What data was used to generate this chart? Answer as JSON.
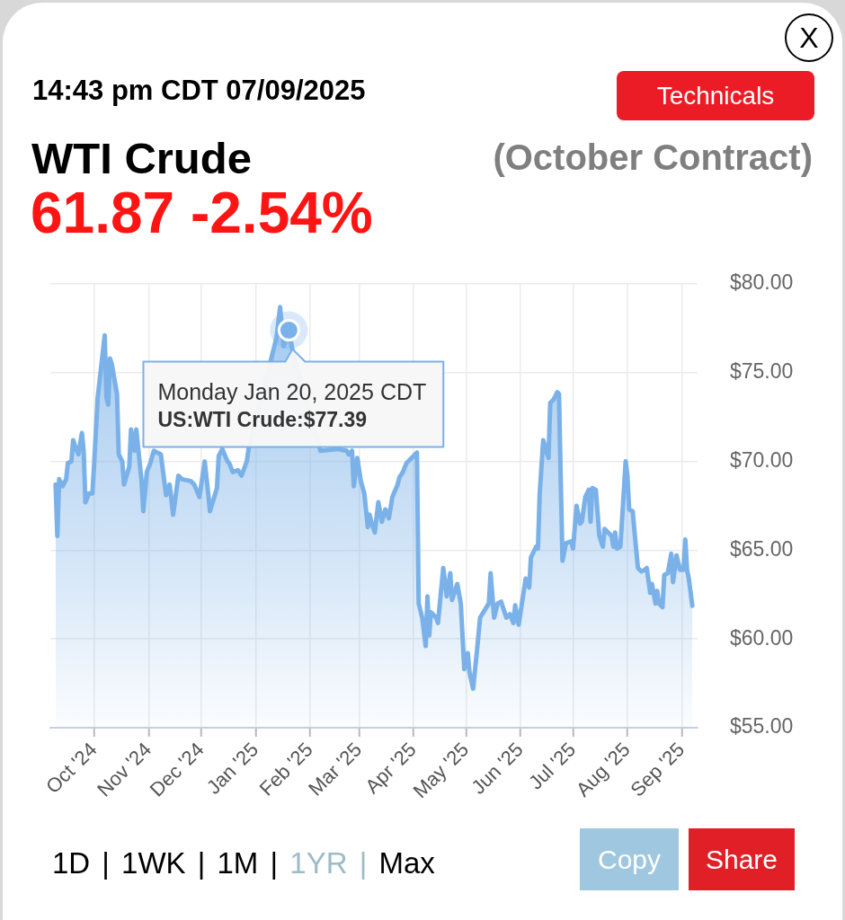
{
  "chart_data": {
    "type": "area",
    "title": "WTI Crude",
    "subtitle": "(October Contract)",
    "annotations": [
      "14:43 pm CDT 07/09/2025",
      "61.87 -2.54%",
      "X",
      "Technicals",
      "1D | 1WK | 1M | 1YR | Max",
      "Copy",
      "Share",
      {
        "text": "Monday Jan 20, 2025 CDT\nUS:WTI Crude:$77.39",
        "x": "2025-01-20",
        "y": 77.39
      }
    ],
    "x": [
      "2024-09-09",
      "2024-09-10",
      "2024-09-11",
      "2024-09-13",
      "2024-09-15",
      "2024-09-16",
      "2024-09-18",
      "2024-09-19",
      "2024-09-20",
      "2024-09-22",
      "2024-09-24",
      "2024-09-25",
      "2024-09-26",
      "2024-09-28",
      "2024-09-30",
      "2024-10-01",
      "2024-10-03",
      "2024-10-07",
      "2024-10-08",
      "2024-10-09",
      "2024-10-10",
      "2024-10-11",
      "2024-10-14",
      "2024-10-15",
      "2024-10-17",
      "2024-10-18",
      "2024-10-21",
      "2024-10-22",
      "2024-10-24",
      "2024-10-25",
      "2024-10-28",
      "2024-10-29",
      "2024-10-31",
      "2024-11-02",
      "2024-11-04",
      "2024-11-06",
      "2024-11-08",
      "2024-11-11",
      "2024-11-13",
      "2024-11-15",
      "2024-11-18",
      "2024-11-20",
      "2024-11-22",
      "2024-11-25",
      "2024-11-27",
      "2024-11-30",
      "2024-12-03",
      "2024-12-05",
      "2024-12-06",
      "2024-12-10",
      "2024-12-11",
      "2024-12-13",
      "2024-12-16",
      "2024-12-17",
      "2024-12-19",
      "2024-12-22",
      "2024-12-24",
      "2024-12-27",
      "2024-12-28",
      "2024-12-30",
      "2025-01-02",
      "2025-01-04",
      "2025-01-07",
      "2025-01-10",
      "2025-01-13",
      "2025-01-15",
      "2025-01-17",
      "2025-01-20",
      "2025-01-22",
      "2025-01-23",
      "2025-01-26",
      "2025-01-29",
      "2025-01-31",
      "2025-02-03",
      "2025-02-05",
      "2025-02-07",
      "2025-02-10",
      "2025-02-12",
      "2025-02-15",
      "2025-02-17",
      "2025-02-20",
      "2025-02-22",
      "2025-02-23",
      "2025-02-25",
      "2025-02-26",
      "2025-02-28",
      "2025-03-02",
      "2025-03-04",
      "2025-03-06",
      "2025-03-07",
      "2025-03-08",
      "2025-03-10",
      "2025-03-12",
      "2025-03-14",
      "2025-03-16",
      "2025-03-18",
      "2025-03-20",
      "2025-03-23",
      "2025-03-24",
      "2025-03-26",
      "2025-03-28",
      "2025-03-29",
      "2025-03-31",
      "2025-04-02",
      "2025-04-03",
      "2025-04-04",
      "2025-04-06",
      "2025-04-08",
      "2025-04-09",
      "2025-04-10",
      "2025-04-11",
      "2025-04-14",
      "2025-04-15",
      "2025-04-18",
      "2025-04-20",
      "2025-04-22",
      "2025-04-23",
      "2025-04-26",
      "2025-04-28",
      "2025-04-30",
      "2025-05-02",
      "2025-05-03",
      "2025-05-05",
      "2025-05-07",
      "2025-05-09",
      "2025-05-14",
      "2025-05-15",
      "2025-05-17",
      "2025-05-19",
      "2025-05-21",
      "2025-05-24",
      "2025-05-26",
      "2025-05-28",
      "2025-05-29",
      "2025-05-31",
      "2025-06-04",
      "2025-06-06",
      "2025-06-07",
      "2025-06-10",
      "2025-06-11",
      "2025-06-12",
      "2025-06-14",
      "2025-06-17",
      "2025-06-18",
      "2025-06-20",
      "2025-06-22",
      "2025-06-23",
      "2025-06-24",
      "2025-06-25",
      "2025-06-27",
      "2025-06-30",
      "2025-07-01",
      "2025-07-03",
      "2025-07-05",
      "2025-07-06",
      "2025-07-08",
      "2025-07-10",
      "2025-07-11",
      "2025-07-12",
      "2025-07-14",
      "2025-07-16",
      "2025-07-18",
      "2025-07-19",
      "2025-07-21",
      "2025-07-23",
      "2025-07-24",
      "2025-07-25",
      "2025-07-26",
      "2025-07-28",
      "2025-07-29",
      "2025-07-31",
      "2025-08-01",
      "2025-08-02",
      "2025-08-04",
      "2025-08-05",
      "2025-08-07",
      "2025-08-09",
      "2025-08-11",
      "2025-08-12",
      "2025-08-14",
      "2025-08-15",
      "2025-08-17",
      "2025-08-18",
      "2025-08-19",
      "2025-08-21",
      "2025-08-22",
      "2025-08-24",
      "2025-08-26",
      "2025-08-27",
      "2025-08-29",
      "2025-08-31",
      "2025-09-02",
      "2025-09-03",
      "2025-09-04",
      "2025-09-05",
      "2025-09-07"
    ],
    "values": [
      68.7,
      65.8,
      69.0,
      68.6,
      69.0,
      69.9,
      70.0,
      71.2,
      70.9,
      70.4,
      71.6,
      70.6,
      67.7,
      68.2,
      68.2,
      69.9,
      73.6,
      77.1,
      73.6,
      73.2,
      75.8,
      75.5,
      73.8,
      70.4,
      70.0,
      68.7,
      69.7,
      71.8,
      70.6,
      71.8,
      68.9,
      67.2,
      69.4,
      69.9,
      70.6,
      null,
      70.4,
      68.1,
      68.7,
      67.0,
      69.2,
      69.0,
      null,
      68.9,
      68.7,
      68.0,
      70.0,
      68.2,
      67.2,
      68.5,
      70.3,
      70.7,
      70.0,
      69.9,
      69.4,
      69.5,
      69.2,
      70.0,
      70.7,
      null,
      null,
      null,
      null,
      null,
      77.0,
      78.7,
      76.5,
      77.39,
      76.3,
      null,
      null,
      null,
      null,
      null,
      null,
      70.6,
      null,
      null,
      null,
      70.7,
      null,
      70.6,
      70.4,
      70.6,
      68.6,
      70.2,
      68.9,
      68.2,
      66.3,
      67.0,
      66.6,
      66.0,
      67.7,
      66.6,
      67.3,
      66.8,
      68.0,
      68.7,
      69.1,
      69.4,
      69.9,
      70.0,
      null,
      null,
      70.5,
      62.0,
      61.2,
      59.6,
      62.4,
      60.2,
      61.5,
      61.2,
      60.9,
      64.0,
      62.4,
      63.7,
      62.2,
      63.1,
      62.0,
      58.3,
      59.2,
      58.1,
      57.2,
      59.1,
      61.2,
      62.0,
      63.7,
      61.2,
      62.0,
      62.1,
      61.2,
      61.4,
      60.9,
      61.9,
      60.8,
      63.4,
      62.9,
      64.6,
      65.2,
      65.1,
      68.2,
      71.2,
      70.2,
      73.3,
      73.5,
      73.9,
      73.8,
      68.9,
      64.4,
      65.4,
      65.5,
      65.1,
      67.5,
      66.5,
      66.6,
      68.0,
      68.4,
      66.6,
      68.5,
      68.4,
      65.8,
      65.2,
      66.2,
      66.0,
      65.8,
      65.2,
      66.0,
      65.1,
      65.2,
      66.8,
      70.0,
      69.2,
      67.3,
      67.2,
      66.1,
      64.0,
      63.8,
      63.9,
      64.0,
      62.6,
      63.1,
      62.0,
      62.7,
      62.0,
      61.8,
      63.6,
      63.7,
      64.8,
      63.2,
      64.7,
      63.9,
      63.9,
      65.6,
      63.9,
      63.4,
      61.87
    ],
    "color": "#7ab1e8",
    "marker": "none",
    "xlim": [
      "2024-09-06",
      "2025-09-10"
    ],
    "xticks": [
      {
        "value": "2024-10-01",
        "label": "Oct '24"
      },
      {
        "value": "2024-11-01",
        "label": "Nov '24"
      },
      {
        "value": "2024-12-01",
        "label": "Dec '24"
      },
      {
        "value": "2025-01-01",
        "label": "Jan '25"
      },
      {
        "value": "2025-02-01",
        "label": "Feb '25"
      },
      {
        "value": "2025-03-01",
        "label": "Mar '25"
      },
      {
        "value": "2025-04-01",
        "label": "Apr '25"
      },
      {
        "value": "2025-05-01",
        "label": "May '25"
      },
      {
        "value": "2025-06-01",
        "label": "Jun '25"
      },
      {
        "value": "2025-07-01",
        "label": "Jul '25"
      },
      {
        "value": "2025-08-01",
        "label": "Aug '25"
      },
      {
        "value": "2025-09-01",
        "label": "Sep '25"
      }
    ],
    "ylim": [
      55,
      80
    ],
    "yticks": [
      {
        "value": 55,
        "label": "$55.00"
      },
      {
        "value": 60,
        "label": "$60.00"
      },
      {
        "value": 65,
        "label": "$65.00"
      },
      {
        "value": 70,
        "label": "$70.00"
      },
      {
        "value": 75,
        "label": "$75.00"
      },
      {
        "value": 80,
        "label": "$80.00"
      }
    ],
    "grid": true
  }
}
